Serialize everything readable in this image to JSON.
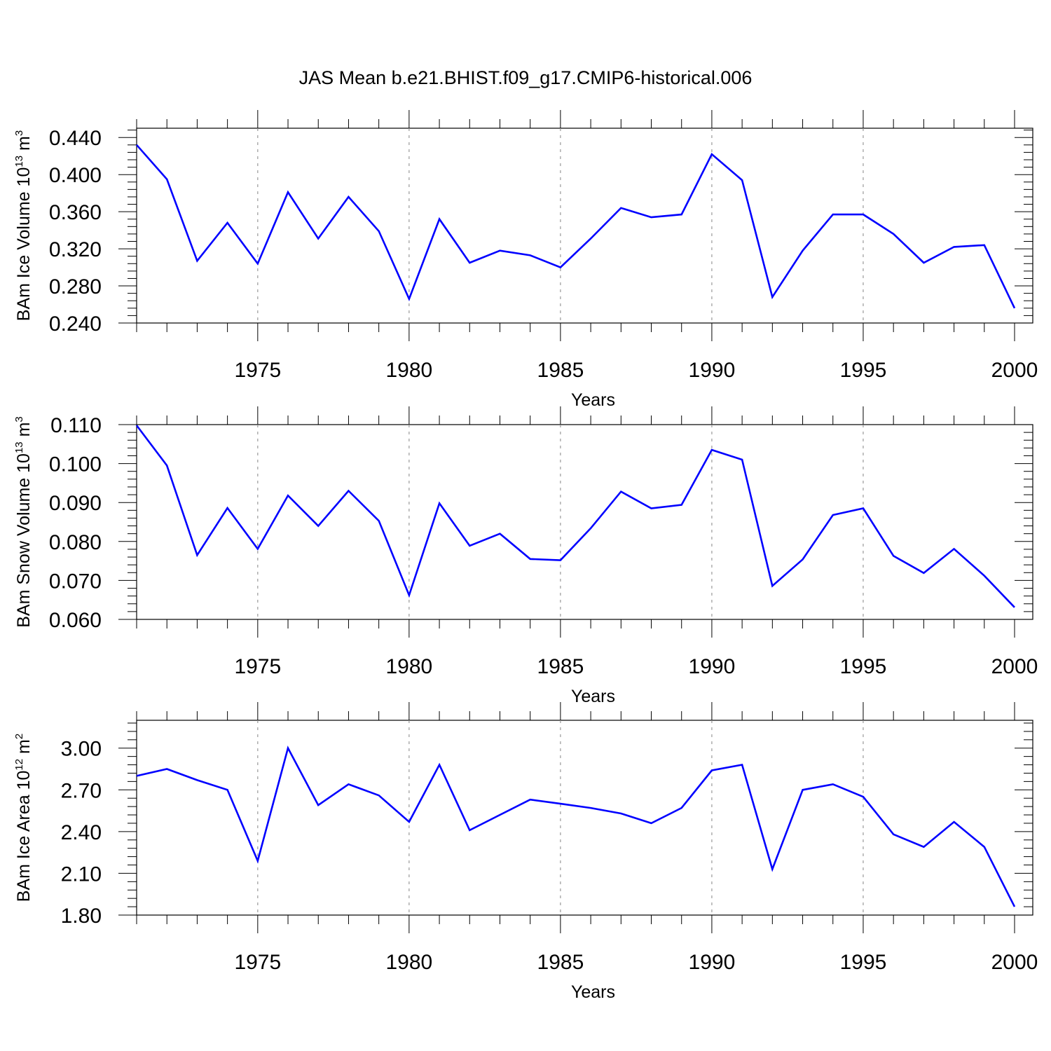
{
  "title": "JAS Mean b.e21.BHIST.f09_g17.CMIP6-historical.006",
  "line_color": "#0000ff",
  "grid_color": "#999999",
  "chart_data": [
    {
      "type": "line",
      "title": "JAS Mean b.e21.BHIST.f09_g17.CMIP6-historical.006",
      "xlabel": "Years",
      "ylabel": "BAm Ice Volume 10",
      "ylabel_exp": "13",
      "ylabel_unit": " m",
      "ylabel_unit_exp": "3",
      "xlim": [
        1971,
        2000
      ],
      "ylim": [
        0.24,
        0.45
      ],
      "x_ticks": [
        1975,
        1980,
        1985,
        1990,
        1995,
        2000
      ],
      "x_tick_labels": [
        "1975",
        "1980",
        "1985",
        "1990",
        "1995",
        "2000"
      ],
      "y_ticks": [
        0.24,
        0.28,
        0.32,
        0.36,
        0.4,
        0.44
      ],
      "y_tick_labels": [
        "0.240",
        "0.280",
        "0.320",
        "0.360",
        "0.400",
        "0.440"
      ],
      "grid": "vertical dashed lines at major x ticks",
      "x": [
        1971,
        1972,
        1973,
        1974,
        1975,
        1976,
        1977,
        1978,
        1979,
        1980,
        1981,
        1982,
        1983,
        1984,
        1985,
        1986,
        1987,
        1988,
        1989,
        1990,
        1991,
        1992,
        1993,
        1994,
        1995,
        1996,
        1997,
        1998,
        1999,
        2000
      ],
      "series": [
        {
          "values": [
            0.432,
            0.395,
            0.307,
            0.348,
            0.304,
            0.381,
            0.331,
            0.376,
            0.339,
            0.266,
            0.352,
            0.305,
            0.318,
            0.313,
            0.3,
            0.331,
            0.364,
            0.354,
            0.357,
            0.422,
            0.394,
            0.268,
            0.318,
            0.357,
            0.357,
            0.336,
            0.305,
            0.322,
            0.324,
            0.256
          ]
        }
      ]
    },
    {
      "type": "line",
      "xlabel": "Years",
      "ylabel": "BAm Snow Volume 10",
      "ylabel_exp": "13",
      "ylabel_unit": " m",
      "ylabel_unit_exp": "3",
      "xlim": [
        1971,
        2000
      ],
      "ylim": [
        0.06,
        0.11
      ],
      "x_ticks": [
        1975,
        1980,
        1985,
        1990,
        1995,
        2000
      ],
      "x_tick_labels": [
        "1975",
        "1980",
        "1985",
        "1990",
        "1995",
        "2000"
      ],
      "y_ticks": [
        0.06,
        0.07,
        0.08,
        0.09,
        0.1,
        0.11
      ],
      "y_tick_labels": [
        "0.060",
        "0.070",
        "0.080",
        "0.090",
        "0.100",
        "0.110"
      ],
      "grid": "vertical dashed lines at major x ticks",
      "x": [
        1971,
        1972,
        1973,
        1974,
        1975,
        1976,
        1977,
        1978,
        1979,
        1980,
        1981,
        1982,
        1983,
        1984,
        1985,
        1986,
        1987,
        1988,
        1989,
        1990,
        1991,
        1992,
        1993,
        1994,
        1995,
        1996,
        1997,
        1998,
        1999,
        2000
      ],
      "series": [
        {
          "values": [
            0.1098,
            0.0995,
            0.0765,
            0.0886,
            0.0781,
            0.0918,
            0.084,
            0.093,
            0.0853,
            0.0662,
            0.0898,
            0.0789,
            0.082,
            0.0755,
            0.0752,
            0.0834,
            0.0928,
            0.0885,
            0.0894,
            0.1035,
            0.101,
            0.0686,
            0.0754,
            0.0868,
            0.0885,
            0.0763,
            0.0719,
            0.0781,
            0.0712,
            0.0631
          ]
        }
      ]
    },
    {
      "type": "line",
      "xlabel": "Years",
      "ylabel": "BAm Ice Area 10",
      "ylabel_exp": "12",
      "ylabel_unit": " m",
      "ylabel_unit_exp": "2",
      "xlim": [
        1971,
        2000
      ],
      "ylim": [
        1.8,
        3.2
      ],
      "x_ticks": [
        1975,
        1980,
        1985,
        1990,
        1995,
        2000
      ],
      "x_tick_labels": [
        "1975",
        "1980",
        "1985",
        "1990",
        "1995",
        "2000"
      ],
      "y_ticks": [
        1.8,
        2.1,
        2.4,
        2.7,
        3.0
      ],
      "y_tick_labels": [
        "1.80",
        "2.10",
        "2.40",
        "2.70",
        "3.00"
      ],
      "grid": "vertical dashed lines at major x ticks",
      "x": [
        1971,
        1972,
        1973,
        1974,
        1975,
        1976,
        1977,
        1978,
        1979,
        1980,
        1981,
        1982,
        1983,
        1984,
        1985,
        1986,
        1987,
        1988,
        1989,
        1990,
        1991,
        1992,
        1993,
        1994,
        1995,
        1996,
        1997,
        1998,
        1999,
        2000
      ],
      "series": [
        {
          "values": [
            2.8,
            2.85,
            2.77,
            2.7,
            2.19,
            3.0,
            2.59,
            2.74,
            2.66,
            2.47,
            2.88,
            2.41,
            2.52,
            2.63,
            2.6,
            2.57,
            2.53,
            2.46,
            2.57,
            2.84,
            2.88,
            2.13,
            2.7,
            2.74,
            2.65,
            2.38,
            2.29,
            2.47,
            2.29,
            1.86
          ]
        }
      ]
    }
  ]
}
